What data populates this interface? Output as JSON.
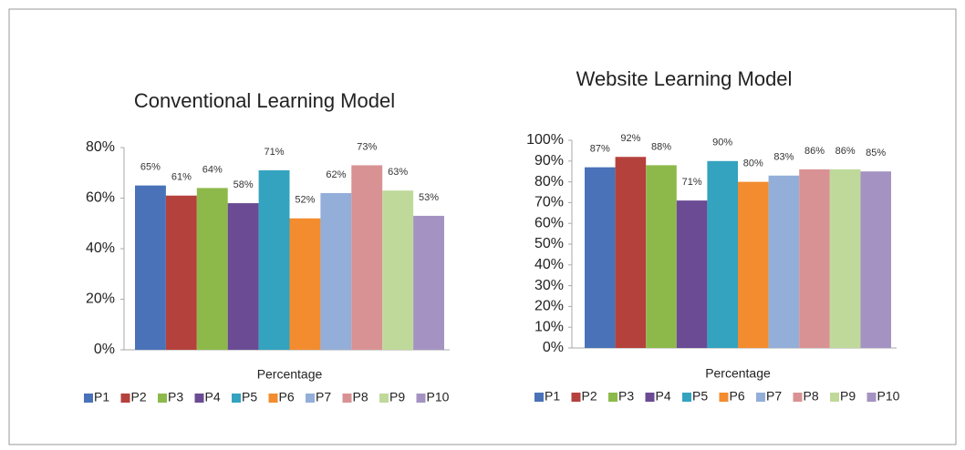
{
  "chart_data": [
    {
      "type": "bar",
      "title": "Conventional Learning Model",
      "categories": [
        "Percentage"
      ],
      "ylim": [
        0,
        80
      ],
      "yticks": [
        {
          "value": 0,
          "label": "0%"
        },
        {
          "value": 20,
          "label": "20%"
        },
        {
          "value": 40,
          "label": "40%"
        },
        {
          "value": 60,
          "label": "60%"
        },
        {
          "value": 80,
          "label": "80%"
        }
      ],
      "legend": "bottom",
      "series": [
        {
          "name": "P1",
          "color": "#4a72b8",
          "values": [
            65
          ],
          "value_labels": [
            "65%"
          ]
        },
        {
          "name": "P2",
          "color": "#b5413c",
          "values": [
            61
          ],
          "value_labels": [
            "61%"
          ]
        },
        {
          "name": "P3",
          "color": "#8db94a",
          "values": [
            64
          ],
          "value_labels": [
            "64%"
          ]
        },
        {
          "name": "P4",
          "color": "#6b4b94",
          "values": [
            58
          ],
          "value_labels": [
            "58%"
          ]
        },
        {
          "name": "P5",
          "color": "#33a3bf",
          "values": [
            71
          ],
          "value_labels": [
            "71%"
          ]
        },
        {
          "name": "P6",
          "color": "#f28c2e",
          "values": [
            52
          ],
          "value_labels": [
            "52%"
          ]
        },
        {
          "name": "P7",
          "color": "#93aed8",
          "values": [
            62
          ],
          "value_labels": [
            "62%"
          ]
        },
        {
          "name": "P8",
          "color": "#d99294",
          "values": [
            73
          ],
          "value_labels": [
            "73%"
          ]
        },
        {
          "name": "P9",
          "color": "#bfd99a",
          "values": [
            63
          ],
          "value_labels": [
            "63%"
          ]
        },
        {
          "name": "P10",
          "color": "#a493c2",
          "values": [
            53
          ],
          "value_labels": [
            "53%"
          ]
        }
      ]
    },
    {
      "type": "bar",
      "title": "Website Learning Model",
      "categories": [
        "Percentage"
      ],
      "ylim": [
        0,
        100
      ],
      "yticks": [
        {
          "value": 0,
          "label": "0%"
        },
        {
          "value": 10,
          "label": "10%"
        },
        {
          "value": 20,
          "label": "20%"
        },
        {
          "value": 30,
          "label": "30%"
        },
        {
          "value": 40,
          "label": "40%"
        },
        {
          "value": 50,
          "label": "50%"
        },
        {
          "value": 60,
          "label": "60%"
        },
        {
          "value": 70,
          "label": "70%"
        },
        {
          "value": 80,
          "label": "80%"
        },
        {
          "value": 90,
          "label": "90%"
        },
        {
          "value": 100,
          "label": "100%"
        }
      ],
      "legend": "bottom",
      "series": [
        {
          "name": "P1",
          "color": "#4a72b8",
          "values": [
            87
          ],
          "value_labels": [
            "87%"
          ]
        },
        {
          "name": "P2",
          "color": "#b5413c",
          "values": [
            92
          ],
          "value_labels": [
            "92%"
          ]
        },
        {
          "name": "P3",
          "color": "#8db94a",
          "values": [
            88
          ],
          "value_labels": [
            "88%"
          ]
        },
        {
          "name": "P4",
          "color": "#6b4b94",
          "values": [
            71
          ],
          "value_labels": [
            "71%"
          ]
        },
        {
          "name": "P5",
          "color": "#33a3bf",
          "values": [
            90
          ],
          "value_labels": [
            "90%"
          ]
        },
        {
          "name": "P6",
          "color": "#f28c2e",
          "values": [
            80
          ],
          "value_labels": [
            "80%"
          ]
        },
        {
          "name": "P7",
          "color": "#93aed8",
          "values": [
            83
          ],
          "value_labels": [
            "83%"
          ]
        },
        {
          "name": "P8",
          "color": "#d99294",
          "values": [
            86
          ],
          "value_labels": [
            "86%"
          ]
        },
        {
          "name": "P9",
          "color": "#bfd99a",
          "values": [
            86
          ],
          "value_labels": [
            "86%"
          ]
        },
        {
          "name": "P10",
          "color": "#a493c2",
          "values": [
            85
          ],
          "value_labels": [
            "85%"
          ]
        }
      ]
    }
  ]
}
